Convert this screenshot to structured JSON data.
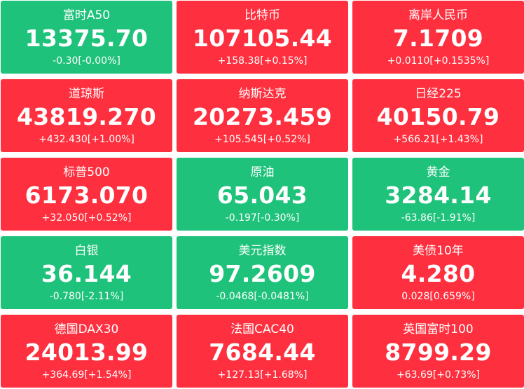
{
  "colors": {
    "up": "#fe2f3e",
    "down": "#1ec27a",
    "text": "#ffffff"
  },
  "tiles": [
    {
      "name": "富时A50",
      "price": "13375.70",
      "change": "-0.30[-0.00%]",
      "direction": "down"
    },
    {
      "name": "比特币",
      "price": "107105.44",
      "change": "+158.38[+0.15%]",
      "direction": "up"
    },
    {
      "name": "离岸人民币",
      "price": "7.1709",
      "change": "+0.0110[+0.1535%]",
      "direction": "up"
    },
    {
      "name": "道琼斯",
      "price": "43819.270",
      "change": "+432.430[+1.00%]",
      "direction": "up"
    },
    {
      "name": "纳斯达克",
      "price": "20273.459",
      "change": "+105.545[+0.52%]",
      "direction": "up"
    },
    {
      "name": "日经225",
      "price": "40150.79",
      "change": "+566.21[+1.43%]",
      "direction": "up"
    },
    {
      "name": "标普500",
      "price": "6173.070",
      "change": "+32.050[+0.52%]",
      "direction": "up"
    },
    {
      "name": "原油",
      "price": "65.043",
      "change": "-0.197[-0.30%]",
      "direction": "down"
    },
    {
      "name": "黄金",
      "price": "3284.14",
      "change": "-63.86[-1.91%]",
      "direction": "down"
    },
    {
      "name": "白银",
      "price": "36.144",
      "change": "-0.780[-2.11%]",
      "direction": "down"
    },
    {
      "name": "美元指数",
      "price": "97.2609",
      "change": "-0.0468[-0.0481%]",
      "direction": "down"
    },
    {
      "name": "美债10年",
      "price": "4.280",
      "change": "0.028[0.659%]",
      "direction": "up"
    },
    {
      "name": "德国DAX30",
      "price": "24013.99",
      "change": "+364.69[+1.54%]",
      "direction": "up"
    },
    {
      "name": "法国CAC40",
      "price": "7684.44",
      "change": "+127.13[+1.68%]",
      "direction": "up"
    },
    {
      "name": "英国富时100",
      "price": "8799.29",
      "change": "+63.69[+0.73%]",
      "direction": "up"
    }
  ]
}
